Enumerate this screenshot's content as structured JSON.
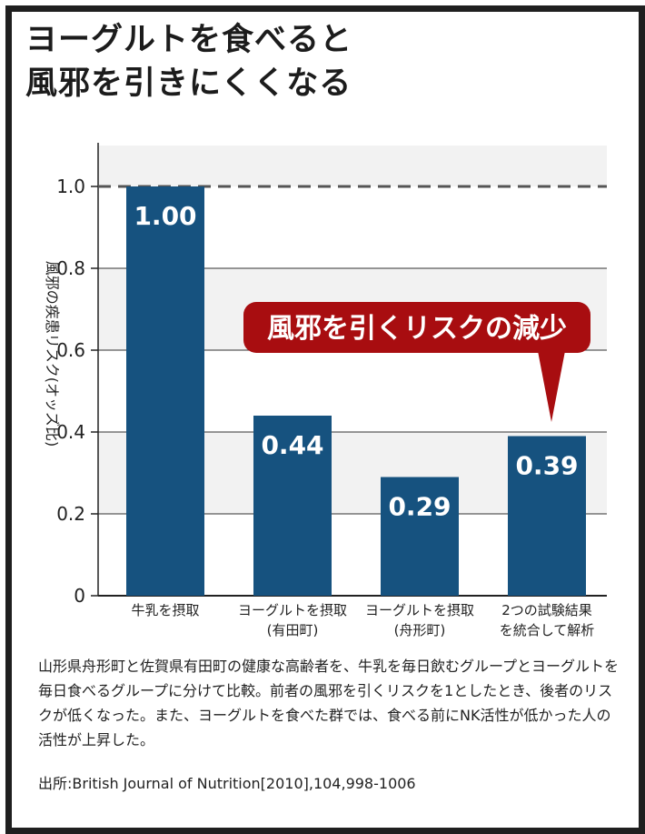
{
  "title_lines": [
    "ヨーグルトを食べると",
    "風邪を引きにくくなる"
  ],
  "chart_data": {
    "type": "bar",
    "ylabel": "風邪の疾患リスク(オッズ比)",
    "ylim": [
      0,
      1.1
    ],
    "yticks": [
      "0",
      "0.2",
      "0.4",
      "0.6",
      "0.8",
      "1.0"
    ],
    "categories": [
      [
        "牛乳を摂取"
      ],
      [
        "ヨーグルトを摂取",
        "(有田町)"
      ],
      [
        "ヨーグルトを摂取",
        "(舟形町)"
      ],
      [
        "2つの試験結果",
        "を統合して解析"
      ]
    ],
    "values": [
      1.0,
      0.44,
      0.29,
      0.39
    ],
    "value_labels": [
      "1.00",
      "0.44",
      "0.29",
      "0.39"
    ],
    "reference_line": 1.0,
    "callout": "風邪を引くリスクの減少",
    "grid": true
  },
  "description": "山形県舟形町と佐賀県有田町の健康な高齢者を、牛乳を毎日飲むグループとヨーグルトを毎日食べるグループに分けて比較。前者の風邪を引くリスクを1としたとき、後者のリスクが低くなった。また、ヨーグルトを食べた群では、食べる前にNK活性が低かった人の活性が上昇した。",
  "source": "出所:British Journal of Nutrition[2010],104,998-1006",
  "colors": {
    "bar": "#16527f",
    "callout": "#a80d10",
    "band": "#f2f2f2",
    "grid": "#333333"
  }
}
